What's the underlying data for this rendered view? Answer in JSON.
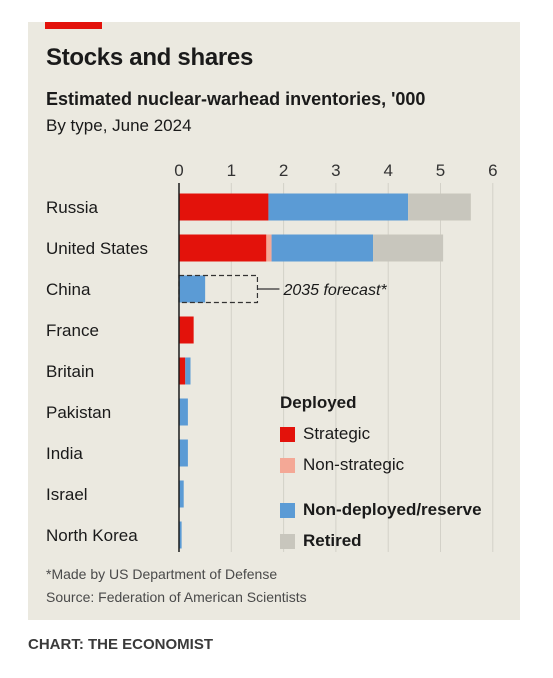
{
  "header": {
    "title": "Stocks and shares",
    "subtitle": "Estimated nuclear-warhead inventories, '000",
    "subsubtitle": "By type, June 2024"
  },
  "colors": {
    "strategic": "#e3120b",
    "non_strategic": "#f4a896",
    "non_deployed": "#5b9bd5",
    "retired": "#c8c6bd",
    "accent": "#e3120b"
  },
  "chart_data": {
    "type": "bar",
    "orientation": "horizontal",
    "stacked": true,
    "categories": [
      "Russia",
      "United States",
      "China",
      "France",
      "Britain",
      "Pakistan",
      "India",
      "Israel",
      "North Korea"
    ],
    "series": [
      {
        "name": "Strategic",
        "values": [
          1.71,
          1.67,
          0,
          0.28,
          0.12,
          0,
          0,
          0,
          0
        ]
      },
      {
        "name": "Non-strategic",
        "values": [
          0,
          0.1,
          0,
          0,
          0,
          0,
          0,
          0,
          0
        ]
      },
      {
        "name": "Non-deployed/reserve",
        "values": [
          2.67,
          1.94,
          0.5,
          0,
          0.1,
          0.17,
          0.17,
          0.09,
          0.05
        ]
      },
      {
        "name": "Retired",
        "values": [
          1.2,
          1.34,
          0,
          0,
          0,
          0,
          0,
          0,
          0
        ]
      }
    ],
    "forecast": {
      "category": "China",
      "value": 1.5,
      "label": "2035 forecast*"
    },
    "xlim": [
      0,
      6
    ],
    "xticks": [
      "0",
      "1",
      "2",
      "3",
      "4",
      "5",
      "6"
    ],
    "grid": true,
    "legend": {
      "heading": "Deployed",
      "placement": "bottom-right"
    }
  },
  "footer": {
    "footnote": "*Made by US Department of Defense",
    "source": "Source: Federation of American Scientists",
    "credit": "CHART: THE ECONOMIST"
  }
}
